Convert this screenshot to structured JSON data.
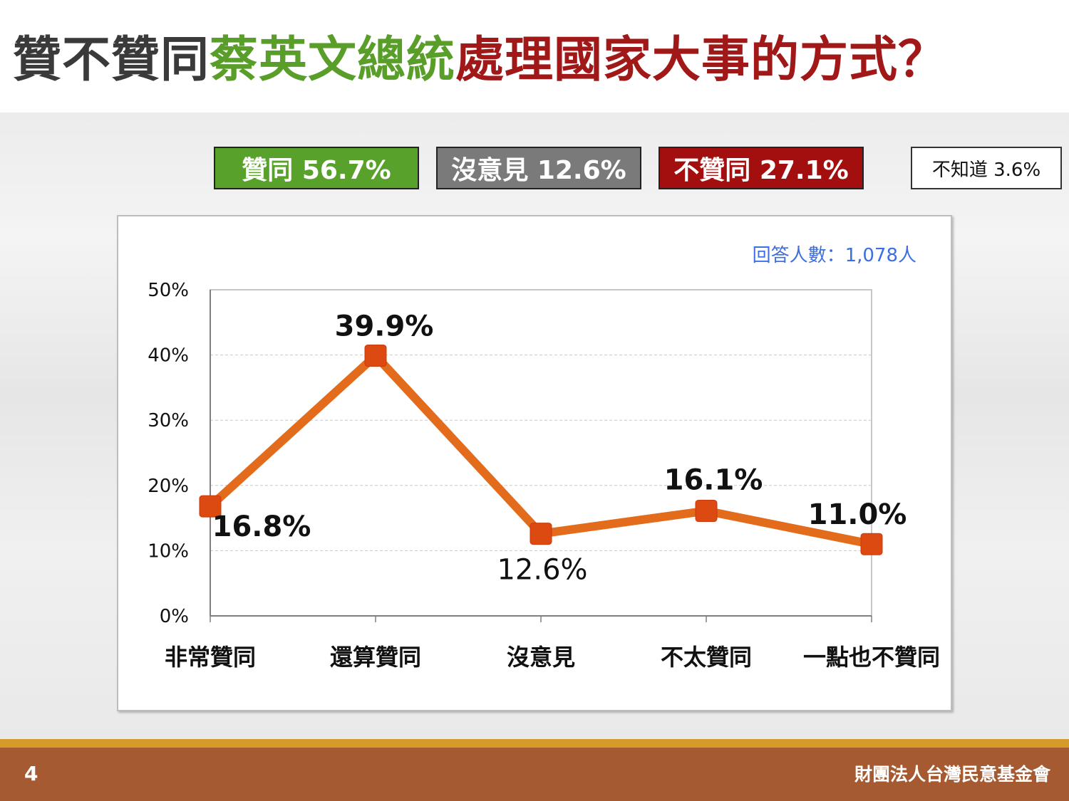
{
  "title": {
    "part1": "贊不贊同",
    "part2": "蔡英文總統",
    "part3": "處理國家大事的方式？",
    "colors": {
      "part1": "#3a3a3a",
      "part2": "#5a9e2a",
      "part3": "#a01818"
    }
  },
  "summary": {
    "approve": {
      "label": "贊同 56.7%",
      "color": "#58a12a"
    },
    "neutral": {
      "label": "沒意見 12.6%",
      "color": "#7a7a7a"
    },
    "disapprove": {
      "label": "不贊同 27.1%",
      "color": "#a30f0f"
    },
    "unknown": {
      "label": "不知道 3.6%"
    }
  },
  "respondents": {
    "text": "回答人數：1,078人",
    "color": "#3d6fe0"
  },
  "chart_data": {
    "type": "line",
    "categories": [
      "非常贊同",
      "還算贊同",
      "沒意見",
      "不太贊同",
      "一點也不贊同"
    ],
    "values": [
      16.8,
      39.9,
      12.6,
      16.1,
      11.0
    ],
    "value_labels": [
      "16.8%",
      "39.9%",
      "12.6%",
      "16.1%",
      "11.0%"
    ],
    "ylim": [
      0,
      50
    ],
    "yticks": [
      0,
      10,
      20,
      30,
      40,
      50
    ],
    "ytick_labels": [
      "0%",
      "10%",
      "20%",
      "30%",
      "40%",
      "50%"
    ],
    "grid": true,
    "line_color": "#e36b1c",
    "marker_color": "#dc4a12"
  },
  "footer": {
    "page": "4",
    "org": "財團法人台灣民意基金會"
  }
}
